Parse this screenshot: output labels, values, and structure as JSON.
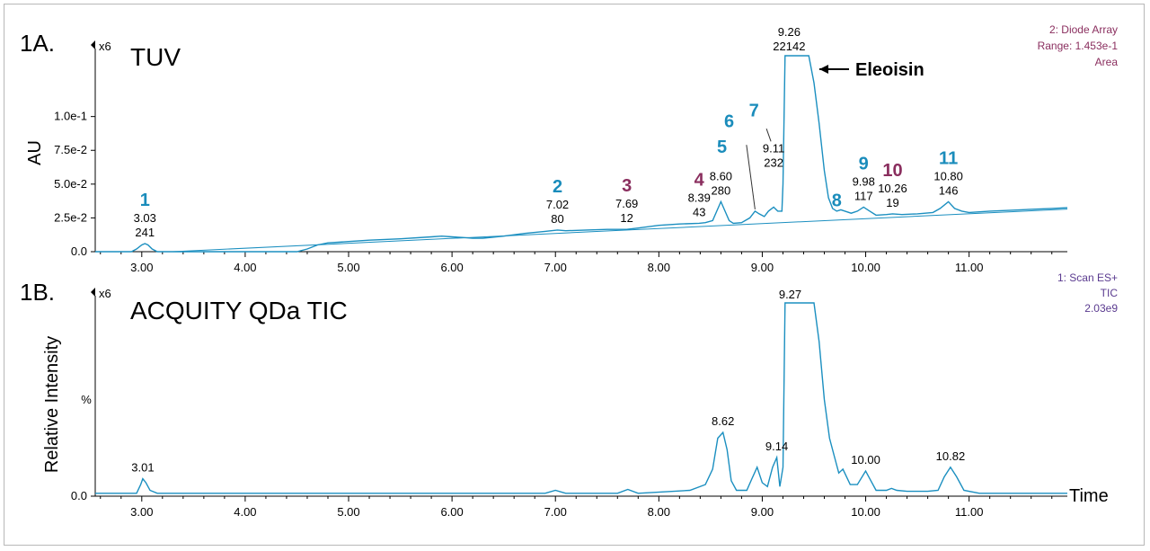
{
  "colors": {
    "trace": "#1b8fc0",
    "peak_number_blue": "#1a8cbb",
    "peak_number_purple": "#8a2e5e",
    "meta_top": "#8a2e5e",
    "meta_bottom": "#5a3a8f"
  },
  "chart_data": [
    {
      "type": "line",
      "panel": "1A.",
      "title": "TUV",
      "xlabel": "",
      "ylabel": "AU",
      "xlim": [
        2.55,
        11.95
      ],
      "ylim": [
        0,
        0.145
      ],
      "x_ticks": [
        "3.00",
        "4.00",
        "5.00",
        "6.00",
        "7.00",
        "8.00",
        "9.00",
        "10.00",
        "11.00"
      ],
      "y_ticks": [
        {
          "value": 0.0,
          "label": "0.0"
        },
        {
          "value": 0.025,
          "label": "2.5e-2"
        },
        {
          "value": 0.05,
          "label": "5.0e-2"
        },
        {
          "value": 0.075,
          "label": "7.5e-2"
        },
        {
          "value": 0.1,
          "label": "1.0e-1"
        }
      ],
      "scale_marker": "x6",
      "meta_lines": [
        "2: Diode Array",
        "Range: 1.453e-1",
        "Area"
      ],
      "annotation": "Eleoisin",
      "series": [
        {
          "x": [
            2.55,
            2.9,
            2.95,
            3.0,
            3.03,
            3.06,
            3.1,
            3.15,
            3.2,
            4.5,
            4.6,
            4.7,
            4.8,
            4.9,
            5.0,
            5.2,
            5.5,
            5.8,
            5.9,
            6.0,
            6.1,
            6.2,
            6.3,
            6.5,
            6.7,
            6.9,
            7.02,
            7.1,
            7.3,
            7.5,
            7.69,
            7.8,
            8.0,
            8.2,
            8.39,
            8.45,
            8.52,
            8.56,
            8.6,
            8.64,
            8.68,
            8.72,
            8.8,
            8.88,
            8.93,
            8.97,
            9.02,
            9.06,
            9.11,
            9.15,
            9.19,
            9.2,
            9.22,
            9.26,
            9.45,
            9.5,
            9.55,
            9.6,
            9.64,
            9.68,
            9.72,
            9.76,
            9.8,
            9.86,
            9.92,
            9.98,
            10.04,
            10.1,
            10.2,
            10.26,
            10.35,
            10.5,
            10.65,
            10.72,
            10.8,
            10.86,
            10.93,
            11.0,
            11.2,
            11.5,
            11.8,
            11.95
          ],
          "y": [
            0.0,
            0.0,
            0.002,
            0.005,
            0.006,
            0.005,
            0.002,
            0.0,
            0.0,
            0.0,
            0.002,
            0.005,
            0.0065,
            0.007,
            0.0075,
            0.0085,
            0.0095,
            0.011,
            0.0115,
            0.011,
            0.0105,
            0.01,
            0.01,
            0.0115,
            0.0135,
            0.015,
            0.016,
            0.0155,
            0.016,
            0.0165,
            0.0165,
            0.0175,
            0.0195,
            0.0205,
            0.021,
            0.0215,
            0.023,
            0.03,
            0.037,
            0.03,
            0.023,
            0.021,
            0.0215,
            0.025,
            0.03,
            0.028,
            0.026,
            0.03,
            0.033,
            0.03,
            0.03,
            0.05,
            0.145,
            0.145,
            0.145,
            0.125,
            0.095,
            0.06,
            0.04,
            0.032,
            0.03,
            0.031,
            0.03,
            0.0285,
            0.03,
            0.033,
            0.03,
            0.027,
            0.0275,
            0.028,
            0.0275,
            0.028,
            0.029,
            0.032,
            0.037,
            0.032,
            0.03,
            0.029,
            0.03,
            0.031,
            0.032,
            0.0325
          ]
        },
        {
          "name": "baseline",
          "x": [
            3.3,
            11.95
          ],
          "y": [
            0.0,
            0.0315
          ]
        }
      ],
      "peak_labels": [
        {
          "num": "1",
          "num_color": "blue",
          "rt": "3.03",
          "area": "241",
          "x": 3.03,
          "y": 0.006
        },
        {
          "num": "2",
          "num_color": "blue",
          "rt": "7.02",
          "area": "80",
          "x": 7.02,
          "y": 0.016
        },
        {
          "num": "3",
          "num_color": "purple",
          "rt": "7.69",
          "area": "12",
          "x": 7.69,
          "y": 0.0165
        },
        {
          "num": "4",
          "num_color": "purple",
          "rt": "8.39",
          "area": "43",
          "x": 8.39,
          "y": 0.021
        },
        {
          "num": "5",
          "num_color": "blue",
          "rt": "8.60",
          "area": "280",
          "x": 8.6,
          "y": 0.037
        },
        {
          "num": "6",
          "num_color": "blue",
          "rt": "",
          "area": "",
          "x": 8.93,
          "y": 0.03
        },
        {
          "num": "7",
          "num_color": "blue",
          "rt": "9.11",
          "area": "232",
          "x": 9.11,
          "y": 0.033
        },
        {
          "num": "",
          "num_color": "blue",
          "rt": "9.26",
          "area": "22142",
          "x": 9.26,
          "y": 0.145
        },
        {
          "num": "8",
          "num_color": "blue",
          "rt": "",
          "area": "",
          "x": 9.76,
          "y": 0.031
        },
        {
          "num": "9",
          "num_color": "blue",
          "rt": "9.98",
          "area": "117",
          "x": 9.98,
          "y": 0.033
        },
        {
          "num": "10",
          "num_color": "purple",
          "rt": "10.26",
          "area": "19",
          "x": 10.26,
          "y": 0.028
        },
        {
          "num": "11",
          "num_color": "blue",
          "rt": "10.80",
          "area": "146",
          "x": 10.8,
          "y": 0.037
        }
      ]
    },
    {
      "type": "line",
      "panel": "1B.",
      "title": "ACQUITY QDa TIC",
      "xlabel": "Time",
      "ylabel": "Relative Intensity",
      "y_unit_label": "%",
      "xlim": [
        2.55,
        11.95
      ],
      "ylim": [
        0,
        100
      ],
      "x_ticks": [
        "3.00",
        "4.00",
        "5.00",
        "6.00",
        "7.00",
        "8.00",
        "9.00",
        "10.00",
        "11.00"
      ],
      "y_ticks": [
        {
          "value": 0,
          "label": "0.0"
        }
      ],
      "scale_marker": "x6",
      "meta_lines": [
        "1: Scan ES+",
        "TIC",
        "2.03e9"
      ],
      "series": [
        {
          "x": [
            2.55,
            2.95,
            2.99,
            3.01,
            3.04,
            3.08,
            3.15,
            4.5,
            5.0,
            5.5,
            6.0,
            6.5,
            6.9,
            7.0,
            7.1,
            7.6,
            7.7,
            7.8,
            8.3,
            8.45,
            8.52,
            8.57,
            8.62,
            8.66,
            8.7,
            8.75,
            8.85,
            8.9,
            8.95,
            9.0,
            9.05,
            9.1,
            9.14,
            9.17,
            9.2,
            9.22,
            9.27,
            9.5,
            9.55,
            9.6,
            9.65,
            9.7,
            9.74,
            9.78,
            9.85,
            9.92,
            10.0,
            10.05,
            10.1,
            10.2,
            10.25,
            10.3,
            10.4,
            10.6,
            10.7,
            10.76,
            10.82,
            10.88,
            10.95,
            11.1,
            11.5,
            11.95
          ],
          "y": [
            1.5,
            1.5,
            6,
            9,
            7,
            3,
            1.5,
            1.5,
            1.5,
            1.5,
            1.5,
            1.5,
            1.5,
            3,
            1.5,
            1.5,
            3.5,
            1.5,
            3,
            6,
            14,
            30,
            33,
            24,
            8,
            3,
            3,
            9,
            15,
            7,
            5,
            15,
            20,
            5,
            15,
            100,
            100,
            100,
            80,
            50,
            30,
            20,
            12,
            14,
            6,
            6,
            13,
            8,
            3,
            3,
            4,
            3,
            2.5,
            2.5,
            3,
            10,
            15,
            10,
            3,
            1.5,
            1.5,
            1.5
          ]
        }
      ],
      "peak_labels": [
        {
          "rt": "3.01",
          "x": 3.01,
          "y": 9
        },
        {
          "rt": "8.62",
          "x": 8.62,
          "y": 33
        },
        {
          "rt": "9.14",
          "x": 9.14,
          "y": 20
        },
        {
          "rt": "9.27",
          "x": 9.27,
          "y": 100
        },
        {
          "rt": "10.00",
          "x": 10.0,
          "y": 13
        },
        {
          "rt": "10.82",
          "x": 10.82,
          "y": 15
        }
      ]
    }
  ]
}
